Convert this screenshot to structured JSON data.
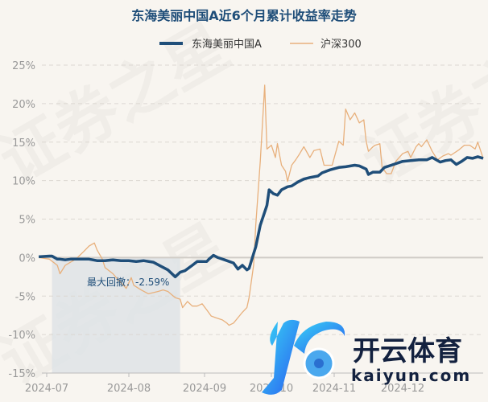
{
  "chart_data": {
    "type": "line",
    "title": "东海美丽中国A近6个月累计收益率走势",
    "xlabel": "",
    "ylabel": "",
    "ylim": [
      -15,
      25
    ],
    "yticks": [
      25,
      20,
      15,
      10,
      5,
      0,
      -5,
      -10,
      -15
    ],
    "ytick_labels": [
      "25%",
      "20%",
      "15%",
      "10%",
      "5%",
      "0%",
      "-5%",
      "-10%",
      "-15%"
    ],
    "xticks": [
      {
        "date": "2024-07-01",
        "label": "2024-07"
      },
      {
        "date": "2024-08-01",
        "label": "2024-08"
      },
      {
        "date": "2024-09-01",
        "label": "2024-09"
      },
      {
        "date": "2024-10-01",
        "label": "2024-10"
      },
      {
        "date": "2024-11-01",
        "label": "2024-11"
      },
      {
        "date": "2024-12-01",
        "label": "2024-12"
      }
    ],
    "grid": true,
    "legend_position": "top",
    "series": [
      {
        "name": "东海美丽中国A",
        "color": "#1f4e79",
        "points": [
          [
            "2024-06-28",
            0.1
          ],
          [
            "2024-07-02",
            0.2
          ],
          [
            "2024-07-03",
            0.2
          ],
          [
            "2024-07-05",
            -0.2
          ],
          [
            "2024-07-06",
            -0.2
          ],
          [
            "2024-07-08",
            -0.3
          ],
          [
            "2024-07-10",
            -0.2
          ],
          [
            "2024-07-14",
            -0.2
          ],
          [
            "2024-07-17",
            -0.2
          ],
          [
            "2024-07-20",
            -0.4
          ],
          [
            "2024-07-23",
            -0.4
          ],
          [
            "2024-07-26",
            -0.3
          ],
          [
            "2024-07-29",
            -0.4
          ],
          [
            "2024-08-01",
            -0.4
          ],
          [
            "2024-08-04",
            -0.5
          ],
          [
            "2024-08-07",
            -0.4
          ],
          [
            "2024-08-11",
            -0.6
          ],
          [
            "2024-08-14",
            -1.1
          ],
          [
            "2024-08-17",
            -1.6
          ],
          [
            "2024-08-20",
            -2.5
          ],
          [
            "2024-08-22",
            -1.9
          ],
          [
            "2024-08-24",
            -1.7
          ],
          [
            "2024-08-27",
            -1.0
          ],
          [
            "2024-08-29",
            -0.5
          ],
          [
            "2024-09-02",
            -0.5
          ],
          [
            "2024-09-03",
            -0.2
          ],
          [
            "2024-09-05",
            0.3
          ],
          [
            "2024-09-07",
            0.0
          ],
          [
            "2024-09-10",
            -0.3
          ],
          [
            "2024-09-14",
            -0.7
          ],
          [
            "2024-09-16",
            -1.5
          ],
          [
            "2024-09-18",
            -1.0
          ],
          [
            "2024-09-20",
            -1.6
          ],
          [
            "2024-09-21",
            -1.4
          ],
          [
            "2024-09-23",
            0.5
          ],
          [
            "2024-09-24",
            1.4
          ],
          [
            "2024-09-26",
            4.2
          ],
          [
            "2024-09-29",
            6.8
          ],
          [
            "2024-09-30",
            8.8
          ],
          [
            "2024-10-02",
            8.3
          ],
          [
            "2024-10-04",
            8.1
          ],
          [
            "2024-10-06",
            8.8
          ],
          [
            "2024-10-09",
            9.2
          ],
          [
            "2024-10-11",
            9.3
          ],
          [
            "2024-10-14",
            9.8
          ],
          [
            "2024-10-17",
            10.2
          ],
          [
            "2024-10-20",
            10.4
          ],
          [
            "2024-10-24",
            10.6
          ],
          [
            "2024-10-26",
            11.0
          ],
          [
            "2024-10-30",
            11.4
          ],
          [
            "2024-11-03",
            11.7
          ],
          [
            "2024-11-06",
            11.8
          ],
          [
            "2024-11-10",
            12.0
          ],
          [
            "2024-11-12",
            11.9
          ],
          [
            "2024-11-15",
            11.5
          ],
          [
            "2024-11-16",
            10.8
          ],
          [
            "2024-11-18",
            11.1
          ],
          [
            "2024-11-21",
            11.1
          ],
          [
            "2024-11-23",
            11.7
          ],
          [
            "2024-11-26",
            12.0
          ],
          [
            "2024-12-01",
            12.5
          ],
          [
            "2024-12-04",
            12.6
          ],
          [
            "2024-12-07",
            12.7
          ],
          [
            "2024-12-10",
            12.7
          ],
          [
            "2024-12-12",
            13.0
          ],
          [
            "2024-12-15",
            12.4
          ],
          [
            "2024-12-17",
            12.6
          ],
          [
            "2024-12-19",
            12.7
          ],
          [
            "2024-12-21",
            12.1
          ],
          [
            "2024-12-23",
            12.5
          ],
          [
            "2024-12-25",
            13.0
          ],
          [
            "2024-12-27",
            12.9
          ],
          [
            "2024-12-29",
            13.1
          ],
          [
            "2024-12-31",
            12.9
          ]
        ]
      },
      {
        "name": "沪深300",
        "color": "#e8b07c",
        "points": [
          [
            "2024-06-28",
            0.0
          ],
          [
            "2024-07-02",
            -0.2
          ],
          [
            "2024-07-05",
            -1.0
          ],
          [
            "2024-07-06",
            -2.1
          ],
          [
            "2024-07-08",
            -1.0
          ],
          [
            "2024-07-10",
            -0.6
          ],
          [
            "2024-07-12",
            -0.2
          ],
          [
            "2024-07-15",
            0.8
          ],
          [
            "2024-07-17",
            1.5
          ],
          [
            "2024-07-19",
            1.9
          ],
          [
            "2024-07-20",
            1.0
          ],
          [
            "2024-07-22",
            -0.2
          ],
          [
            "2024-07-23",
            -1.3
          ],
          [
            "2024-07-26",
            -2.1
          ],
          [
            "2024-07-28",
            -2.9
          ],
          [
            "2024-07-30",
            -3.6
          ],
          [
            "2024-07-31",
            -4.0
          ],
          [
            "2024-08-02",
            -2.6
          ],
          [
            "2024-08-03",
            -3.6
          ],
          [
            "2024-08-06",
            -4.2
          ],
          [
            "2024-08-09",
            -4.7
          ],
          [
            "2024-08-13",
            -4.4
          ],
          [
            "2024-08-15",
            -4.2
          ],
          [
            "2024-08-17",
            -4.4
          ],
          [
            "2024-08-20",
            -5.2
          ],
          [
            "2024-08-22",
            -5.4
          ],
          [
            "2024-08-23",
            -6.5
          ],
          [
            "2024-08-25",
            -5.7
          ],
          [
            "2024-08-27",
            -6.3
          ],
          [
            "2024-08-29",
            -6.3
          ],
          [
            "2024-08-31",
            -6.0
          ],
          [
            "2024-09-02",
            -6.8
          ],
          [
            "2024-09-04",
            -7.6
          ],
          [
            "2024-09-06",
            -7.8
          ],
          [
            "2024-09-09",
            -8.1
          ],
          [
            "2024-09-11",
            -8.5
          ],
          [
            "2024-09-12",
            -8.8
          ],
          [
            "2024-09-14",
            -8.5
          ],
          [
            "2024-09-16",
            -7.8
          ],
          [
            "2024-09-18",
            -7.1
          ],
          [
            "2024-09-20",
            -6.5
          ],
          [
            "2024-09-21",
            -5.2
          ],
          [
            "2024-09-23",
            -1.0
          ],
          [
            "2024-09-24",
            4.2
          ],
          [
            "2024-09-26",
            12.5
          ],
          [
            "2024-09-28",
            22.4
          ],
          [
            "2024-09-29",
            14.1
          ],
          [
            "2024-10-01",
            14.6
          ],
          [
            "2024-10-03",
            13.0
          ],
          [
            "2024-10-04",
            14.8
          ],
          [
            "2024-10-06",
            12.0
          ],
          [
            "2024-10-08",
            11.2
          ],
          [
            "2024-10-09",
            9.9
          ],
          [
            "2024-10-11",
            12.0
          ],
          [
            "2024-10-13",
            12.7
          ],
          [
            "2024-10-15",
            13.5
          ],
          [
            "2024-10-17",
            14.4
          ],
          [
            "2024-10-20",
            13.0
          ],
          [
            "2024-10-22",
            13.9
          ],
          [
            "2024-10-25",
            14.1
          ],
          [
            "2024-10-27",
            12.0
          ],
          [
            "2024-10-29",
            12.0
          ],
          [
            "2024-10-31",
            12.0
          ],
          [
            "2024-11-03",
            15.1
          ],
          [
            "2024-11-05",
            14.6
          ],
          [
            "2024-11-06",
            19.3
          ],
          [
            "2024-11-08",
            17.9
          ],
          [
            "2024-11-10",
            18.8
          ],
          [
            "2024-11-12",
            17.5
          ],
          [
            "2024-11-14",
            17.9
          ],
          [
            "2024-11-15",
            15.1
          ],
          [
            "2024-11-16",
            13.8
          ],
          [
            "2024-11-18",
            14.4
          ],
          [
            "2024-11-19",
            14.6
          ],
          [
            "2024-11-21",
            14.8
          ],
          [
            "2024-11-22",
            11.7
          ],
          [
            "2024-11-24",
            10.9
          ],
          [
            "2024-11-26",
            10.9
          ],
          [
            "2024-11-28",
            12.5
          ],
          [
            "2024-12-01",
            13.5
          ],
          [
            "2024-12-03",
            13.8
          ],
          [
            "2024-12-04",
            13.0
          ],
          [
            "2024-12-06",
            14.4
          ],
          [
            "2024-12-07",
            14.8
          ],
          [
            "2024-12-08",
            14.4
          ],
          [
            "2024-12-10",
            15.3
          ],
          [
            "2024-12-12",
            13.8
          ],
          [
            "2024-12-14",
            12.7
          ],
          [
            "2024-12-16",
            13.2
          ],
          [
            "2024-12-18",
            13.5
          ],
          [
            "2024-12-19",
            13.3
          ],
          [
            "2024-12-22",
            14.0
          ],
          [
            "2024-12-24",
            14.6
          ],
          [
            "2024-12-26",
            14.6
          ],
          [
            "2024-12-28",
            14.1
          ],
          [
            "2024-12-29",
            15.0
          ],
          [
            "2024-12-31",
            12.9
          ]
        ]
      }
    ],
    "annotations": {
      "max_drawdown_label": "最大回撤：-2.59%",
      "max_drawdown_start": "2024-07-03",
      "max_drawdown_end": "2024-08-22",
      "shade_color": "#dde2e6"
    }
  },
  "watermark": "证券之星",
  "logo": {
    "name": "开云体育",
    "domain": "kaiyun.com"
  }
}
